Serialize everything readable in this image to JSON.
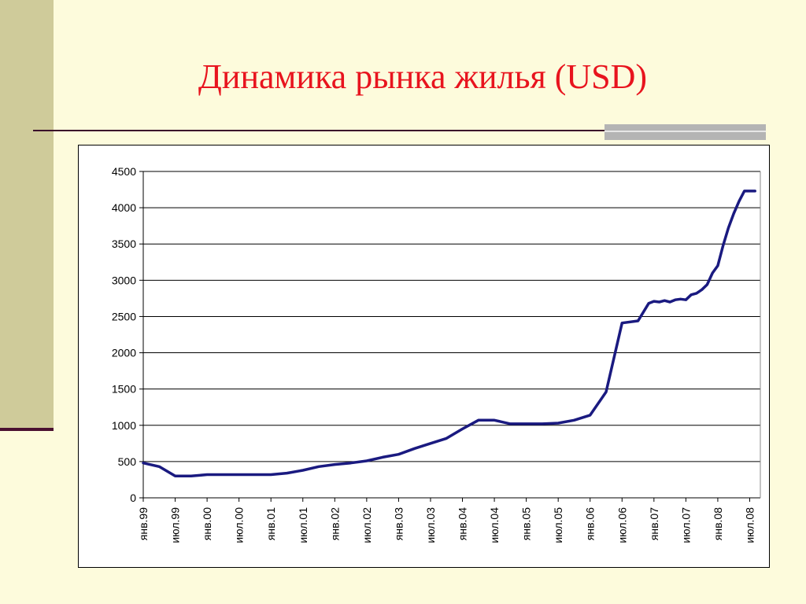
{
  "slide": {
    "title": "Динамика рынка жилья (USD)"
  },
  "colors": {
    "title": "#e8141e",
    "series_line": "#1a1a80",
    "background": "#fdfbdc",
    "side_band": "#cfcb9a"
  },
  "chart_data": {
    "type": "line",
    "title": "",
    "xlabel": "",
    "ylabel": "",
    "ylim": [
      0,
      4500
    ],
    "yticks": [
      0,
      500,
      1000,
      1500,
      2000,
      2500,
      3000,
      3500,
      4000,
      4500
    ],
    "grid": true,
    "legend": "none",
    "xtick_labels": [
      "янв.99",
      "июл.99",
      "янв.00",
      "июл.00",
      "янв.01",
      "июл.01",
      "янв.02",
      "июл.02",
      "янв.03",
      "июл.03",
      "янв.04",
      "июл.04",
      "янв.05",
      "июл.05",
      "янв.06",
      "июл.06",
      "янв.07",
      "июл.07",
      "янв.08",
      "июл.08"
    ],
    "series": [
      {
        "x": [
          "1999-01",
          "1999-04",
          "1999-07",
          "1999-10",
          "2000-01",
          "2000-04",
          "2000-07",
          "2000-10",
          "2001-01",
          "2001-04",
          "2001-07",
          "2001-10",
          "2002-01",
          "2002-04",
          "2002-07",
          "2002-10",
          "2003-01",
          "2003-04",
          "2003-07",
          "2003-10",
          "2004-01",
          "2004-04",
          "2004-07",
          "2004-10",
          "2005-01",
          "2005-04",
          "2005-07",
          "2005-10",
          "2006-01",
          "2006-04",
          "2006-07",
          "2006-10",
          "2006-12",
          "2007-01",
          "2007-02",
          "2007-03",
          "2007-04",
          "2007-05",
          "2007-06",
          "2007-07",
          "2007-08",
          "2007-09",
          "2007-10",
          "2007-11",
          "2007-12",
          "2008-01",
          "2008-02",
          "2008-03",
          "2008-04",
          "2008-05",
          "2008-06",
          "2008-07",
          "2008-08"
        ],
        "values": [
          480,
          430,
          300,
          300,
          320,
          320,
          320,
          320,
          320,
          340,
          380,
          430,
          460,
          480,
          510,
          560,
          600,
          680,
          750,
          820,
          950,
          1070,
          1070,
          1020,
          1020,
          1020,
          1030,
          1070,
          1140,
          1460,
          2410,
          2440,
          2680,
          2710,
          2700,
          2720,
          2700,
          2730,
          2740,
          2730,
          2800,
          2820,
          2870,
          2940,
          3100,
          3200,
          3480,
          3720,
          3920,
          4090,
          4230,
          4230,
          4230
        ]
      }
    ]
  }
}
